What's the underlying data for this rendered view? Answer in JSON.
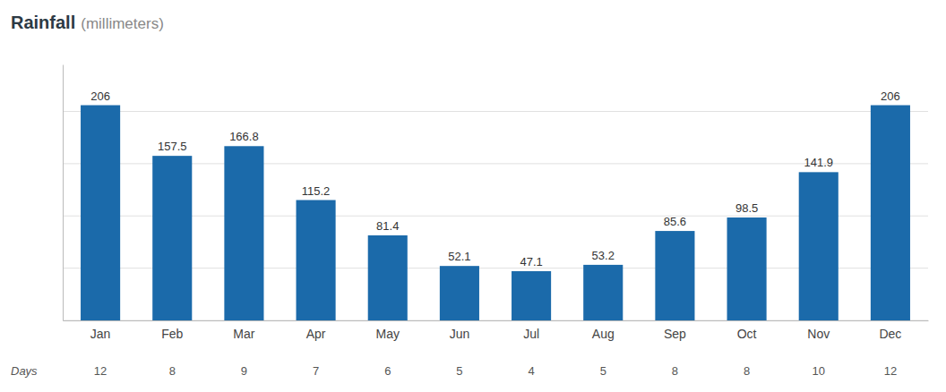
{
  "chart_data": {
    "type": "bar",
    "title": "Rainfall",
    "subtitle": "(millimeters)",
    "categories": [
      "Jan",
      "Feb",
      "Mar",
      "Apr",
      "May",
      "Jun",
      "Jul",
      "Aug",
      "Sep",
      "Oct",
      "Nov",
      "Dec"
    ],
    "values": [
      206,
      157.5,
      166.8,
      115.2,
      81.4,
      52.1,
      47.1,
      53.2,
      85.6,
      98.5,
      141.9,
      206
    ],
    "days": {
      "label": "Days",
      "values": [
        12,
        8,
        9,
        7,
        6,
        5,
        4,
        5,
        8,
        8,
        10,
        12
      ]
    },
    "color": "#1b6aaa",
    "ylim": [
      0,
      245
    ],
    "yticks": [
      0,
      50,
      100,
      150,
      200
    ],
    "grid": true,
    "data_labels": true,
    "tick_labels": "x"
  }
}
